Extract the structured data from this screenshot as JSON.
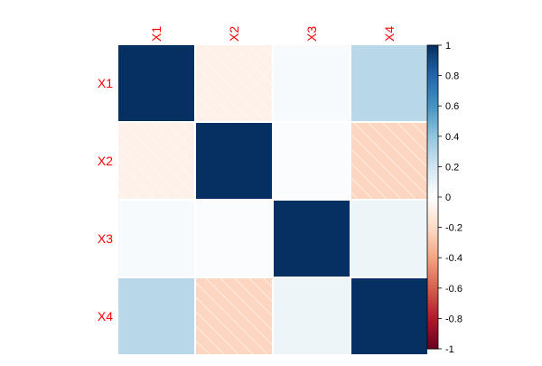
{
  "chart_data": {
    "type": "heatmap",
    "title": "",
    "xlabel": "",
    "ylabel": "",
    "row_labels": [
      "X1",
      "X2",
      "X3",
      "X4"
    ],
    "col_labels": [
      "X1",
      "X2",
      "X3",
      "X4"
    ],
    "matrix": [
      [
        1.0,
        -0.08,
        0.04,
        0.28
      ],
      [
        -0.08,
        1.0,
        0.02,
        -0.22
      ],
      [
        0.04,
        0.02,
        1.0,
        0.08
      ],
      [
        0.28,
        -0.22,
        0.08,
        1.0
      ]
    ],
    "color_scale": {
      "range": [
        -1,
        1
      ],
      "ticks": [
        "1",
        "0.8",
        "0.6",
        "0.4",
        "0.2",
        "0",
        "-0.2",
        "-0.4",
        "-0.6",
        "-0.8",
        "-1"
      ],
      "colors": {
        "negative_max": "#67001F",
        "neutral": "#FFFFFF",
        "positive_max": "#053061"
      }
    },
    "label_color": "#FF0000",
    "negative_hatch": true,
    "grid": false
  }
}
